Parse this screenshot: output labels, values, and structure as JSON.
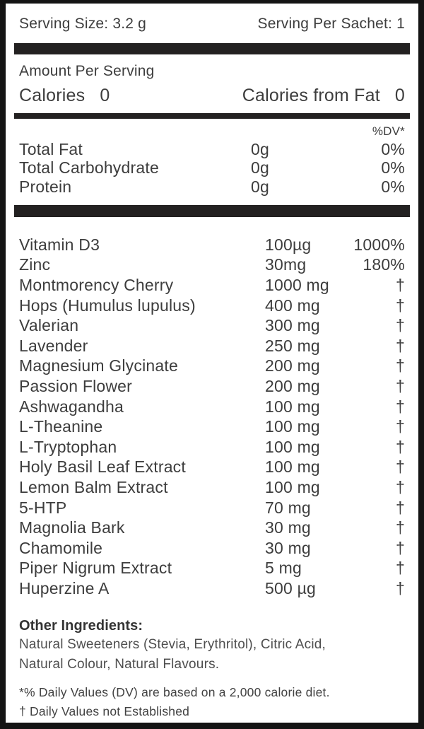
{
  "label": {
    "serving_size": "Serving Size: 3.2 g",
    "serving_per_sachet": "Serving Per Sachet: 1",
    "amount_per_serving": "Amount Per Serving",
    "calories": {
      "label": "Calories",
      "value": "0"
    },
    "calories_from_fat": {
      "label": "Calories from Fat",
      "value": "0"
    },
    "dv_header": "%DV*",
    "macros": [
      {
        "name": "Total Fat",
        "amount": "0g",
        "dv": "0%"
      },
      {
        "name": "Total Carbohydrate",
        "amount": "0g",
        "dv": "0%"
      },
      {
        "name": "Protein",
        "amount": "0g",
        "dv": "0%"
      }
    ],
    "ingredients": [
      {
        "name": "Vitamin D3",
        "amount": "100µg",
        "dv": "1000%"
      },
      {
        "name": "Zinc",
        "amount": "30mg",
        "dv": "180%"
      },
      {
        "name": "Montmorency Cherry",
        "amount": "1000 mg",
        "dv": "†"
      },
      {
        "name": "Hops (Humulus lupulus)",
        "amount": "400 mg",
        "dv": "†"
      },
      {
        "name": "Valerian",
        "amount": "300 mg",
        "dv": "†"
      },
      {
        "name": "Lavender",
        "amount": "250 mg",
        "dv": "†"
      },
      {
        "name": "Magnesium Glycinate",
        "amount": "200 mg",
        "dv": "†"
      },
      {
        "name": "Passion Flower",
        "amount": "200 mg",
        "dv": "†"
      },
      {
        "name": "Ashwagandha",
        "amount": "100 mg",
        "dv": "†"
      },
      {
        "name": "L-Theanine",
        "amount": "100 mg",
        "dv": "†"
      },
      {
        "name": "L-Tryptophan",
        "amount": "100 mg",
        "dv": "†"
      },
      {
        "name": "Holy Basil Leaf Extract",
        "amount": "100 mg",
        "dv": "†"
      },
      {
        "name": "Lemon Balm Extract",
        "amount": "100 mg",
        "dv": "†"
      },
      {
        "name": "5-HTP",
        "amount": "70 mg",
        "dv": "†"
      },
      {
        "name": "Magnolia Bark",
        "amount": "30 mg",
        "dv": "†"
      },
      {
        "name": "Chamomile",
        "amount": "30 mg",
        "dv": "†"
      },
      {
        "name": "Piper Nigrum Extract",
        "amount": "5 mg",
        "dv": "†"
      },
      {
        "name": "Huperzine A",
        "amount": "500 µg",
        "dv": "†"
      }
    ],
    "other_ingredients": {
      "title": "Other Ingredients:",
      "lines": [
        "Natural Sweeteners (Stevia, Erythritol), Citric Acid,",
        "Natural Colour, Natural Flavours."
      ]
    },
    "footnotes": [
      "*% Daily Values (DV) are based on a 2,000 calorie diet.",
      "† Daily Values not Established"
    ],
    "colors": {
      "text": "#3d3d3d",
      "bar": "#232121",
      "border": "#141414",
      "background": "#ffffff"
    }
  }
}
